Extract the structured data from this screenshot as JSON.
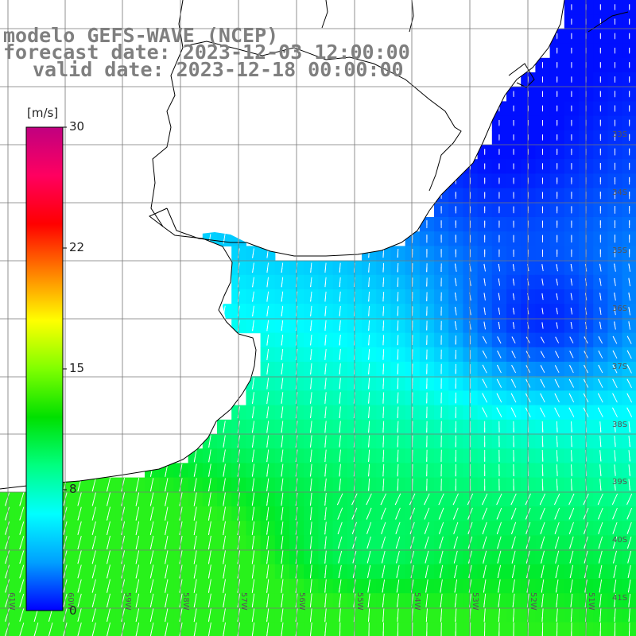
{
  "title": {
    "line1": "modelo GEFS-WAVE (NCEP)",
    "line2": "forecast date: 2023-12-03 12:00:00",
    "line3": "valid date: 2023-12-18 00:00:00"
  },
  "colorbar": {
    "unit": "[m/s]",
    "min": 0,
    "max": 30,
    "tick_labels": [
      "30",
      "22",
      "15",
      "8",
      "0"
    ],
    "tick_values": [
      30,
      22,
      15,
      8,
      0
    ],
    "colors": [
      "#0000ff",
      "#00a0ff",
      "#00ffff",
      "#00ff80",
      "#00e000",
      "#80ff00",
      "#ffff00",
      "#ff8000",
      "#ff0000",
      "#ff0060",
      "#c00080"
    ]
  },
  "map": {
    "longitude_labels": [
      "61W",
      "60W",
      "59W",
      "58W",
      "57W",
      "56W",
      "55W",
      "54W",
      "53W",
      "52W",
      "51W"
    ],
    "latitude_labels": [
      "33S",
      "34S",
      "35S",
      "36S",
      "37S",
      "38S",
      "39S",
      "40S",
      "41S"
    ],
    "lon_range": [
      -62.5,
      -51.6
    ],
    "lat_range": [
      -41.5,
      -30.5
    ],
    "grid": true,
    "field": "wind speed and direction",
    "land_color": "#ffffff",
    "coastline_color": "#000000",
    "arrow_color": "#ffffff"
  }
}
